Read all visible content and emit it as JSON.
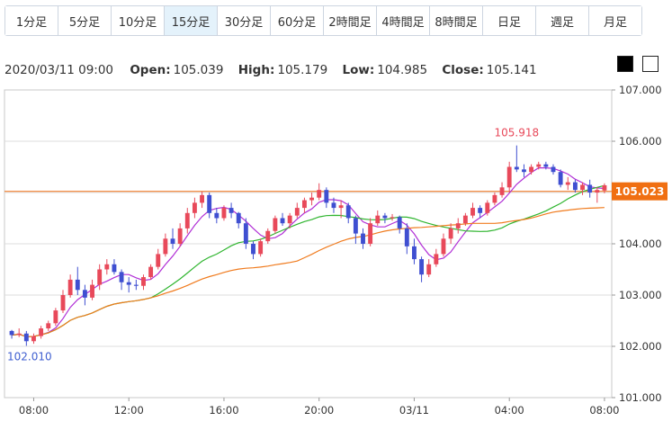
{
  "tabs": [
    {
      "label": "1分足",
      "active": false
    },
    {
      "label": "5分足",
      "active": false
    },
    {
      "label": "10分足",
      "active": false
    },
    {
      "label": "15分足",
      "active": true
    },
    {
      "label": "30分足",
      "active": false
    },
    {
      "label": "60分足",
      "active": false
    },
    {
      "label": "2時間足",
      "active": false
    },
    {
      "label": "4時間足",
      "active": false
    },
    {
      "label": "8時間足",
      "active": false
    },
    {
      "label": "日足",
      "active": false
    },
    {
      "label": "週足",
      "active": false
    },
    {
      "label": "月足",
      "active": false
    }
  ],
  "ohlc": {
    "date": "2020/03/11 09:00",
    "open_label": "Open:",
    "open": "105.039",
    "high_label": "High:",
    "high": "105.179",
    "low_label": "Low:",
    "low": "104.985",
    "close_label": "Close:",
    "close": "105.141"
  },
  "colors": {
    "up": "#e8495a",
    "down": "#3f4fd1",
    "ma_short": "#b12fd6",
    "ma_mid": "#2fb52f",
    "ma_long": "#f07b1e",
    "current": "#f06f12"
  },
  "chart_data": {
    "type": "candlestick",
    "y_ticks": [
      "101.000",
      "102.000",
      "103.000",
      "104.000",
      "105.000",
      "106.000",
      "107.000"
    ],
    "ylim": [
      101.0,
      107.0
    ],
    "x_ticks": [
      "08:00",
      "12:00",
      "16:00",
      "20:00",
      "03/11",
      "04:00",
      "08:00"
    ],
    "current_price": "105.023",
    "max_label": "105.918",
    "min_label": "102.010",
    "candles": [
      [
        102.3,
        102.32,
        102.15,
        102.22
      ],
      [
        102.22,
        102.35,
        102.18,
        102.25
      ],
      [
        102.25,
        102.3,
        102.01,
        102.1
      ],
      [
        102.1,
        102.25,
        102.05,
        102.2
      ],
      [
        102.2,
        102.4,
        102.15,
        102.35
      ],
      [
        102.35,
        102.5,
        102.3,
        102.45
      ],
      [
        102.45,
        102.75,
        102.4,
        102.7
      ],
      [
        102.7,
        103.1,
        102.65,
        103.0
      ],
      [
        103.0,
        103.4,
        102.95,
        103.3
      ],
      [
        103.3,
        103.55,
        103.0,
        103.1
      ],
      [
        103.1,
        103.2,
        102.8,
        102.95
      ],
      [
        102.95,
        103.3,
        102.9,
        103.2
      ],
      [
        103.2,
        103.6,
        103.1,
        103.5
      ],
      [
        103.5,
        103.7,
        103.4,
        103.6
      ],
      [
        103.6,
        103.7,
        103.4,
        103.45
      ],
      [
        103.45,
        103.5,
        103.1,
        103.25
      ],
      [
        103.25,
        103.35,
        103.05,
        103.2
      ],
      [
        103.2,
        103.3,
        103.1,
        103.18
      ],
      [
        103.18,
        103.4,
        103.1,
        103.35
      ],
      [
        103.35,
        103.6,
        103.3,
        103.55
      ],
      [
        103.55,
        103.9,
        103.5,
        103.8
      ],
      [
        103.8,
        104.2,
        103.75,
        104.1
      ],
      [
        104.1,
        104.3,
        103.9,
        104.0
      ],
      [
        104.0,
        104.4,
        103.95,
        104.3
      ],
      [
        104.3,
        104.7,
        104.2,
        104.6
      ],
      [
        104.6,
        104.9,
        104.5,
        104.8
      ],
      [
        104.8,
        105.02,
        104.7,
        104.95
      ],
      [
        104.95,
        105.0,
        104.5,
        104.6
      ],
      [
        104.6,
        104.7,
        104.4,
        104.5
      ],
      [
        104.5,
        104.75,
        104.45,
        104.7
      ],
      [
        104.7,
        104.8,
        104.5,
        104.6
      ],
      [
        104.6,
        104.62,
        104.3,
        104.4
      ],
      [
        104.4,
        104.5,
        103.9,
        104.0
      ],
      [
        104.0,
        104.05,
        103.7,
        103.8
      ],
      [
        103.8,
        104.1,
        103.75,
        104.05
      ],
      [
        104.05,
        104.3,
        104.0,
        104.25
      ],
      [
        104.25,
        104.55,
        104.2,
        104.5
      ],
      [
        104.5,
        104.6,
        104.35,
        104.4
      ],
      [
        104.4,
        104.6,
        104.3,
        104.55
      ],
      [
        104.55,
        104.8,
        104.5,
        104.7
      ],
      [
        104.7,
        104.9,
        104.6,
        104.85
      ],
      [
        104.85,
        105.0,
        104.75,
        104.9
      ],
      [
        104.9,
        105.18,
        104.85,
        105.05
      ],
      [
        105.05,
        105.1,
        104.7,
        104.8
      ],
      [
        104.8,
        104.9,
        104.6,
        104.7
      ],
      [
        104.7,
        104.85,
        104.5,
        104.75
      ],
      [
        104.75,
        104.8,
        104.4,
        104.5
      ],
      [
        104.5,
        104.55,
        104.0,
        104.2
      ],
      [
        104.2,
        104.3,
        103.9,
        104.0
      ],
      [
        104.0,
        104.5,
        103.95,
        104.4
      ],
      [
        104.4,
        104.65,
        104.35,
        104.55
      ],
      [
        104.55,
        104.6,
        104.4,
        104.5
      ],
      [
        104.5,
        104.58,
        104.45,
        104.52
      ],
      [
        104.52,
        104.55,
        104.2,
        104.3
      ],
      [
        104.3,
        104.4,
        103.8,
        103.95
      ],
      [
        103.95,
        104.1,
        103.6,
        103.7
      ],
      [
        103.7,
        103.75,
        103.25,
        103.4
      ],
      [
        103.4,
        103.7,
        103.35,
        103.6
      ],
      [
        103.6,
        103.9,
        103.55,
        103.8
      ],
      [
        103.8,
        104.2,
        103.75,
        104.1
      ],
      [
        104.1,
        104.4,
        104.0,
        104.3
      ],
      [
        104.3,
        104.5,
        104.2,
        104.4
      ],
      [
        104.4,
        104.6,
        104.35,
        104.55
      ],
      [
        104.55,
        104.8,
        104.5,
        104.7
      ],
      [
        104.7,
        104.75,
        104.5,
        104.6
      ],
      [
        104.6,
        104.85,
        104.55,
        104.8
      ],
      [
        104.8,
        105.0,
        104.75,
        104.95
      ],
      [
        104.95,
        105.2,
        104.9,
        105.1
      ],
      [
        105.1,
        105.6,
        105.0,
        105.5
      ],
      [
        105.5,
        105.918,
        105.4,
        105.45
      ],
      [
        105.45,
        105.55,
        105.3,
        105.4
      ],
      [
        105.4,
        105.55,
        105.35,
        105.5
      ],
      [
        105.5,
        105.6,
        105.45,
        105.55
      ],
      [
        105.55,
        105.6,
        105.45,
        105.5
      ],
      [
        105.5,
        105.55,
        105.35,
        105.4
      ],
      [
        105.4,
        105.45,
        105.1,
        105.15
      ],
      [
        105.15,
        105.3,
        105.05,
        105.2
      ],
      [
        105.2,
        105.25,
        105.0,
        105.05
      ],
      [
        105.05,
        105.2,
        104.95,
        105.15
      ],
      [
        105.15,
        105.25,
        104.9,
        105.0
      ],
      [
        105.0,
        105.1,
        104.8,
        105.05
      ],
      [
        105.039,
        105.179,
        104.985,
        105.141
      ]
    ]
  }
}
